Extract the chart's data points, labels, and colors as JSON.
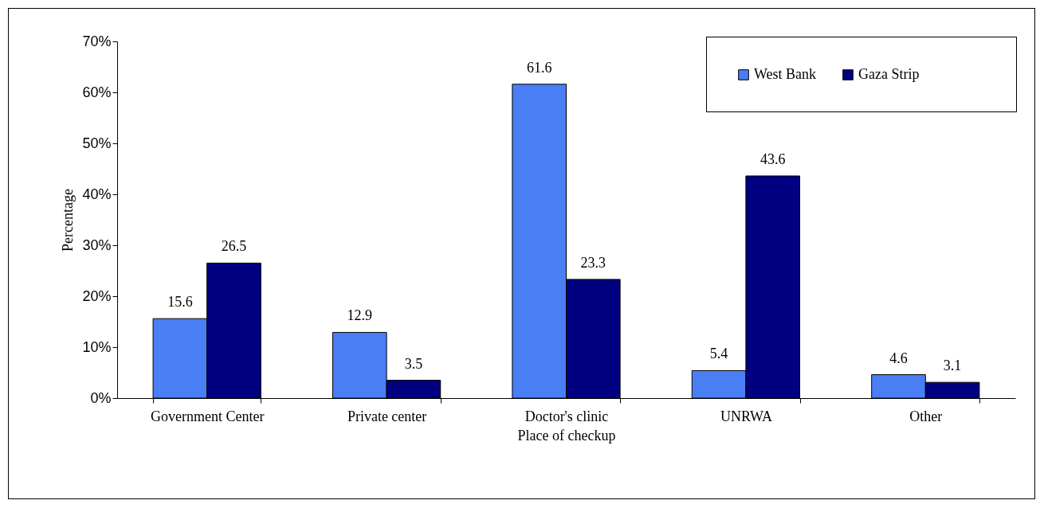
{
  "chart_data": {
    "type": "bar",
    "xlabel": "Place of checkup",
    "ylabel": "Percentage",
    "categories": [
      "Government Center",
      "Private center",
      "Doctor's clinic",
      "UNRWA",
      "Other"
    ],
    "series": [
      {
        "name": "West Bank",
        "color": "#4a7ef5",
        "values": [
          15.6,
          12.9,
          61.6,
          5.4,
          4.6
        ]
      },
      {
        "name": "Gaza Strip",
        "color": "#000080",
        "values": [
          26.5,
          3.5,
          23.3,
          43.6,
          3.1
        ]
      }
    ],
    "ylim": [
      0,
      70
    ],
    "yticks": [
      {
        "value": 0,
        "label": "0%"
      },
      {
        "value": 10,
        "label": "10%"
      },
      {
        "value": 20,
        "label": "20%"
      },
      {
        "value": 30,
        "label": "30%"
      },
      {
        "value": 40,
        "label": "40%"
      },
      {
        "value": 50,
        "label": "50%"
      },
      {
        "value": 60,
        "label": "60%"
      },
      {
        "value": 70,
        "label": "70%"
      }
    ],
    "data_labels": true,
    "grid": false,
    "legend": "top right"
  }
}
